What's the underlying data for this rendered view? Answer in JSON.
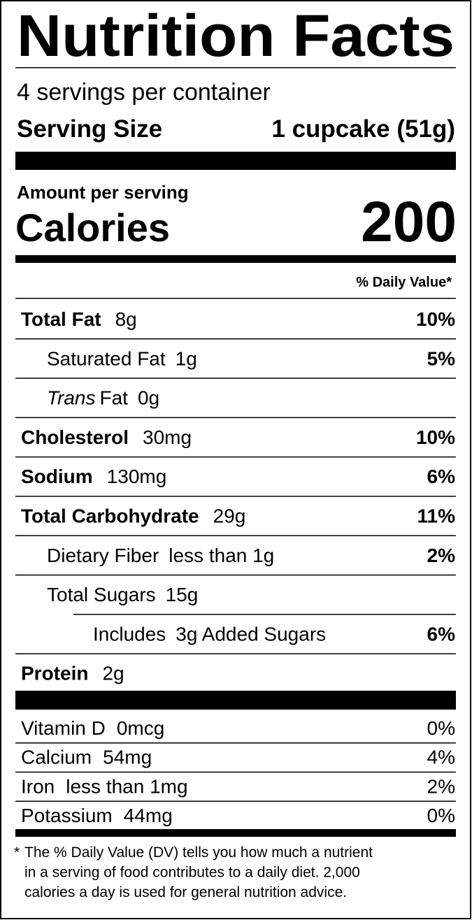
{
  "title": "Nutrition Facts",
  "servings": "4 servings per container",
  "serving_size": {
    "label": "Serving Size",
    "value": "1 cupcake (51g)"
  },
  "amount_per_serving": "Amount per serving",
  "calories": {
    "label": "Calories",
    "value": "200"
  },
  "dv_header": "% Daily Value*",
  "nutrients": [
    {
      "name": "Total Fat",
      "amount": "8g",
      "dv": "10%"
    },
    {
      "name": "Saturated Fat",
      "amount": "1g",
      "dv": "5%"
    },
    {
      "name_italic": "Trans",
      "name": "Fat",
      "amount": "0g"
    },
    {
      "name": "Cholesterol",
      "amount": "30mg",
      "dv": "10%"
    },
    {
      "name": "Sodium",
      "amount": "130mg",
      "dv": "6%"
    },
    {
      "name": "Total Carbohydrate",
      "amount": "29g",
      "dv": "11%"
    },
    {
      "name": "Dietary Fiber",
      "amount": "less than 1g",
      "dv": "2%"
    },
    {
      "name": "Total Sugars",
      "amount": "15g"
    },
    {
      "name": "Includes",
      "amount": "3g Added Sugars",
      "dv": "6%"
    },
    {
      "name": "Protein",
      "amount": "2g"
    }
  ],
  "vitamins": [
    {
      "name": "Vitamin D",
      "amount": "0mcg",
      "dv": "0%"
    },
    {
      "name": "Calcium",
      "amount": "54mg",
      "dv": "4%"
    },
    {
      "name": "Iron",
      "amount": "less than 1mg",
      "dv": "2%"
    },
    {
      "name": "Potassium",
      "amount": "44mg",
      "dv": "0%"
    }
  ],
  "footnote": {
    "mark": "*",
    "lines": [
      "The % Daily Value (DV) tells you how much a nutrient",
      "in a serving of food contributes to a daily diet. 2,000",
      "calories a day is used for general nutrition advice."
    ]
  }
}
